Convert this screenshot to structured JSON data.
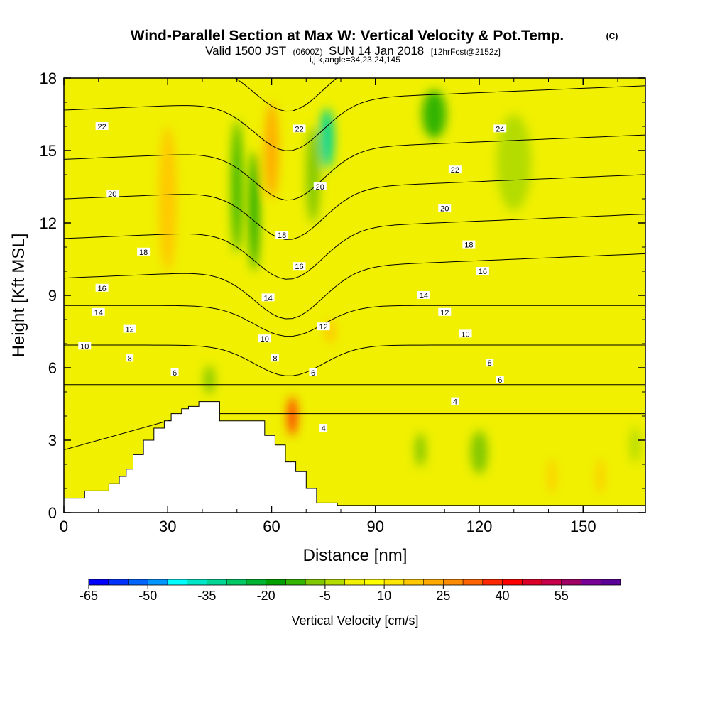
{
  "chart_data": {
    "type": "heatmap",
    "title": "Wind-Parallel Section at Max W: Vertical Velocity & Pot.Temp.",
    "title_mark": "(C)",
    "subtitle_parts": [
      "Valid 1500 JST",
      "(0600Z)",
      "SUN 14 Jan 2018",
      "[12hrFcst@2152z]"
    ],
    "subtitle2": "i,j,k,angle=34,23,24,145",
    "xlabel": "Distance [nm]",
    "ylabel": "Height [Kft MSL]",
    "xlim": [
      0,
      168
    ],
    "ylim": [
      0,
      18
    ],
    "xticks": [
      0,
      30,
      60,
      90,
      120,
      150
    ],
    "yticks": [
      0,
      3,
      6,
      9,
      12,
      15,
      18
    ],
    "grid": false,
    "colorbar": {
      "label": "Vertical Velocity [cm/s]",
      "tick_labels": [
        "-65",
        "-50",
        "-35",
        "-20",
        "-5",
        "10",
        "25",
        "40",
        "55"
      ],
      "levels": [
        -65,
        -60,
        -55,
        -50,
        -45,
        -40,
        -35,
        -30,
        -25,
        -20,
        -15,
        -10,
        -5,
        0,
        5,
        10,
        15,
        20,
        25,
        30,
        35,
        40,
        45,
        50,
        55,
        60
      ],
      "colors": [
        "#0000ff",
        "#0032ff",
        "#0064ff",
        "#0096ff",
        "#00ffff",
        "#00e6c8",
        "#00d696",
        "#00c864",
        "#00b432",
        "#00a000",
        "#32b400",
        "#82c800",
        "#b4dc00",
        "#f0f000",
        "#ffff00",
        "#ffe600",
        "#ffc800",
        "#ffaa00",
        "#ff8c00",
        "#ff6400",
        "#ff2800",
        "#ff0000",
        "#dc0028",
        "#c8004b",
        "#a00064",
        "#780096",
        "#5a0096"
      ]
    },
    "series": [
      {
        "name": "theta-contours",
        "values": [
          4,
          6,
          8,
          10,
          12,
          14,
          16,
          18,
          20,
          22,
          24
        ]
      }
    ],
    "contour_labels": [
      {
        "text": "22",
        "x": 11,
        "y": 16.0
      },
      {
        "text": "22",
        "x": 68,
        "y": 15.9
      },
      {
        "text": "24",
        "x": 126,
        "y": 15.9
      },
      {
        "text": "22",
        "x": 113,
        "y": 14.2
      },
      {
        "text": "20",
        "x": 14,
        "y": 13.2
      },
      {
        "text": "20",
        "x": 74,
        "y": 13.5
      },
      {
        "text": "20",
        "x": 110,
        "y": 12.6
      },
      {
        "text": "18",
        "x": 23,
        "y": 10.8
      },
      {
        "text": "18",
        "x": 63,
        "y": 11.5
      },
      {
        "text": "18",
        "x": 117,
        "y": 11.1
      },
      {
        "text": "16",
        "x": 11,
        "y": 9.3
      },
      {
        "text": "16",
        "x": 68,
        "y": 10.2
      },
      {
        "text": "16",
        "x": 121,
        "y": 10.0
      },
      {
        "text": "14",
        "x": 10,
        "y": 8.3
      },
      {
        "text": "14",
        "x": 59,
        "y": 8.9
      },
      {
        "text": "14",
        "x": 104,
        "y": 9.0
      },
      {
        "text": "12",
        "x": 19,
        "y": 7.6
      },
      {
        "text": "12",
        "x": 75,
        "y": 7.7
      },
      {
        "text": "12",
        "x": 110,
        "y": 8.3
      },
      {
        "text": "10",
        "x": 6,
        "y": 6.9
      },
      {
        "text": "10",
        "x": 58,
        "y": 7.2
      },
      {
        "text": "10",
        "x": 116,
        "y": 7.4
      },
      {
        "text": "8",
        "x": 19,
        "y": 6.4
      },
      {
        "text": "8",
        "x": 61,
        "y": 6.4
      },
      {
        "text": "8",
        "x": 123,
        "y": 6.2
      },
      {
        "text": "6",
        "x": 32,
        "y": 5.8
      },
      {
        "text": "6",
        "x": 72,
        "y": 5.8
      },
      {
        "text": "6",
        "x": 126,
        "y": 5.5
      },
      {
        "text": "4",
        "x": 113,
        "y": 4.6
      },
      {
        "text": "4",
        "x": 75,
        "y": 3.5
      }
    ],
    "terrain_profile": {
      "x": [
        0,
        6,
        6,
        13,
        13,
        16,
        16,
        18,
        18,
        20,
        20,
        23,
        23,
        26,
        26,
        29,
        29,
        31,
        31,
        34,
        34,
        36,
        36,
        39,
        39,
        45,
        45,
        58,
        58,
        61,
        61,
        64,
        64,
        67,
        67,
        70,
        70,
        73,
        73,
        79,
        79,
        168
      ],
      "y": [
        0.6,
        0.6,
        0.9,
        0.9,
        1.2,
        1.2,
        1.5,
        1.5,
        1.8,
        1.8,
        2.4,
        2.4,
        3.0,
        3.0,
        3.5,
        3.5,
        3.8,
        3.8,
        4.1,
        4.1,
        4.3,
        4.3,
        4.4,
        4.4,
        4.6,
        4.6,
        3.8,
        3.8,
        3.2,
        3.2,
        2.8,
        2.8,
        2.1,
        2.1,
        1.7,
        1.7,
        1.0,
        1.0,
        0.4,
        0.4,
        0.3,
        0.3
      ]
    },
    "velocity_features": [
      {
        "x": 50,
        "y": 13.5,
        "w": 3,
        "h": 5.5,
        "value": -20
      },
      {
        "x": 55,
        "y": 12.5,
        "w": 2.5,
        "h": 5,
        "value": -25
      },
      {
        "x": 76,
        "y": 15.5,
        "w": 4,
        "h": 2.5,
        "value": -40
      },
      {
        "x": 72,
        "y": 14,
        "w": 4,
        "h": 4,
        "value": -15
      },
      {
        "x": 107,
        "y": 16.5,
        "w": 7,
        "h": 2,
        "value": -20
      },
      {
        "x": 130,
        "y": 14.5,
        "w": 10,
        "h": 4,
        "value": -10
      },
      {
        "x": 60,
        "y": 15,
        "w": 4,
        "h": 4,
        "value": 15
      },
      {
        "x": 30,
        "y": 13,
        "w": 5,
        "h": 6,
        "value": 12
      },
      {
        "x": 66,
        "y": 4.0,
        "w": 2.5,
        "h": 1.6,
        "value": 30
      },
      {
        "x": 77,
        "y": 7.5,
        "w": 3,
        "h": 1,
        "value": 10
      },
      {
        "x": 103,
        "y": 2.6,
        "w": 3,
        "h": 1.4,
        "value": -12
      },
      {
        "x": 120,
        "y": 2.5,
        "w": 5,
        "h": 1.8,
        "value": -12
      },
      {
        "x": 141,
        "y": 1.5,
        "w": 2,
        "h": 1.5,
        "value": 12
      },
      {
        "x": 155,
        "y": 1.5,
        "w": 2,
        "h": 1.5,
        "value": 10
      },
      {
        "x": 165,
        "y": 2.8,
        "w": 3,
        "h": 1.5,
        "value": -10
      },
      {
        "x": 42,
        "y": 5.5,
        "w": 3,
        "h": 1.2,
        "value": -15
      }
    ]
  }
}
